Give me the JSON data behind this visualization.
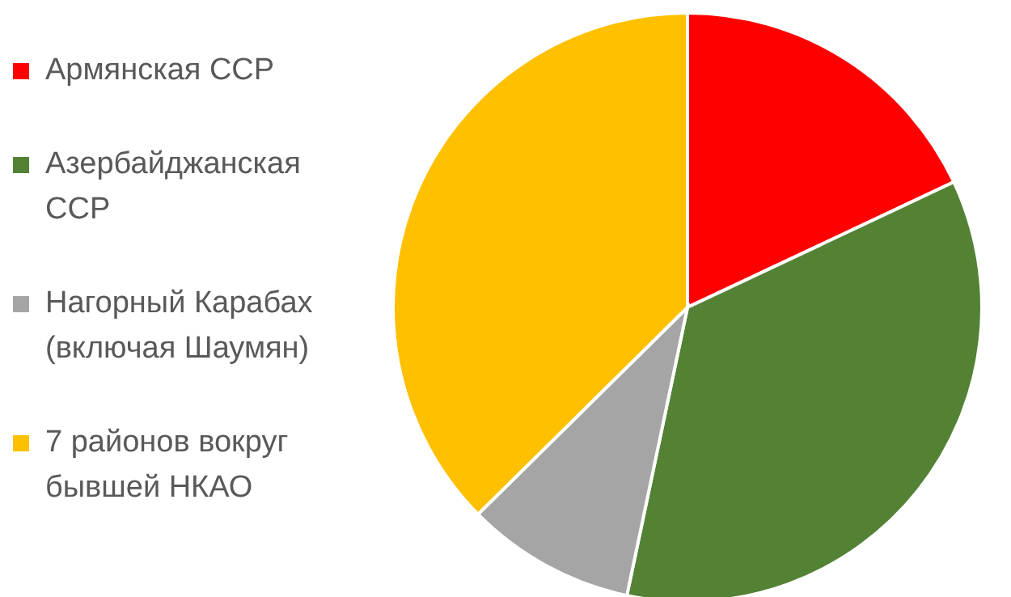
{
  "chart_data": {
    "type": "pie",
    "categories": [
      "Армянская ССР",
      "Азербайджанская ССР",
      "Нагорный Карабах (включая Шаумян)",
      "7 районов вокруг бывшей НКАО"
    ],
    "values": [
      18,
      35.3,
      9.3,
      37.4
    ],
    "colors": [
      "#ff0000",
      "#548235",
      "#a5a5a5",
      "#ffc000"
    ],
    "legend": "left"
  }
}
